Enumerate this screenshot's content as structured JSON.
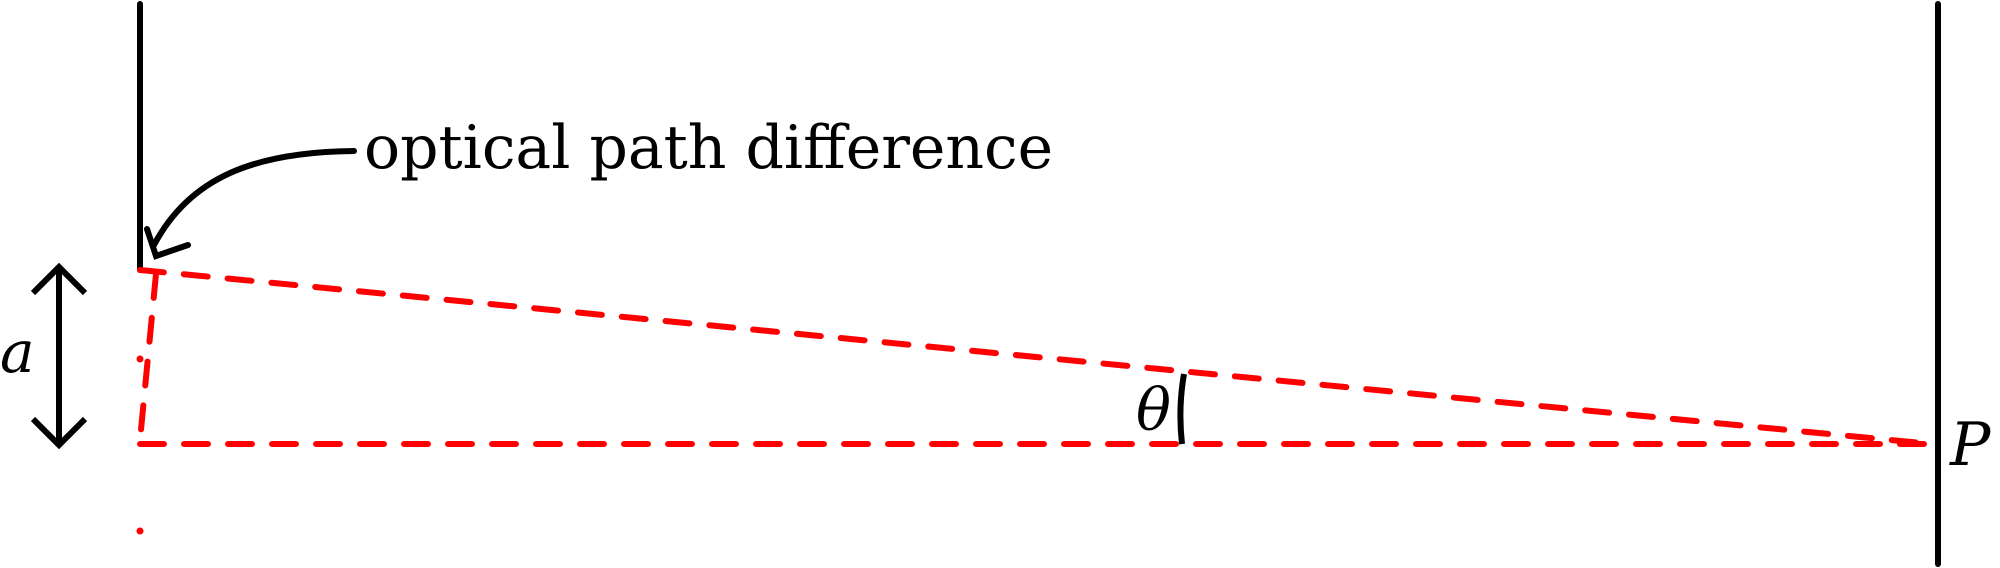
{
  "labels": {
    "annotation": "optical path difference",
    "slit_spacing": "a",
    "angle": "θ",
    "point": "P"
  },
  "colors": {
    "ink": "#000000",
    "ray": "#ff0000",
    "background": "#ffffff"
  },
  "line_styles": {
    "ray": "dashed",
    "walls": "solid"
  }
}
